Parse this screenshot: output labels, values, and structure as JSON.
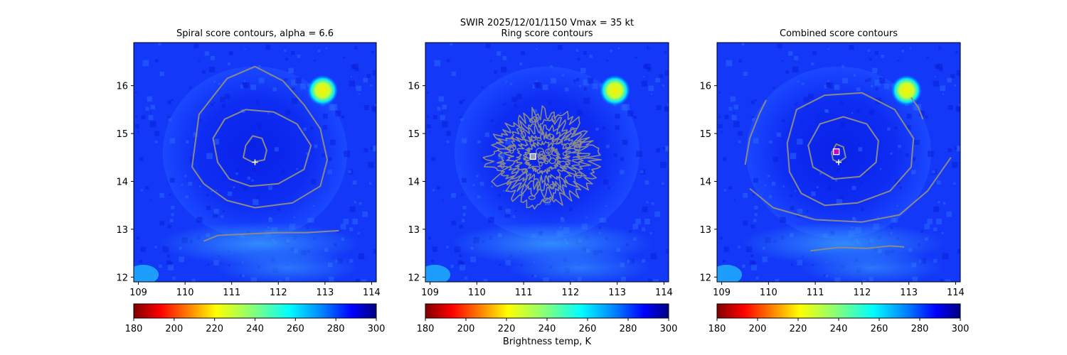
{
  "figure": {
    "suptitle_line1": "SWIR  2025/12/01/1150    Vmax = 35 kt",
    "colorbar_label": "Brightness temp, K"
  },
  "colors": {
    "contour": "#8a8a8a",
    "background_field": "#1030f0",
    "warm_spot": "#ffe000",
    "marker_white": "#ffffff",
    "marker_magenta": "#cc00cc"
  },
  "chart_data": [
    {
      "type": "heatmap",
      "panel": "spiral",
      "title": "Spiral score contours, alpha =  6.6",
      "xlim": [
        108.9,
        114.1
      ],
      "ylim": [
        11.9,
        16.9
      ],
      "xticks": [
        "109",
        "110",
        "111",
        "112",
        "113",
        "114"
      ],
      "yticks": [
        "12",
        "13",
        "14",
        "15",
        "16"
      ],
      "colormap": "jet_r",
      "colorbar": {
        "min": 180,
        "max": 300,
        "ticks": [
          "180",
          "200",
          "220",
          "240",
          "260",
          "280",
          "300"
        ]
      },
      "center_marker": {
        "symbol": "+",
        "x": 111.5,
        "y": 14.4
      },
      "warm_spot": {
        "x": 112.95,
        "y": 15.9
      },
      "contours": [
        [
          [
            111.3,
            14.75
          ],
          [
            111.45,
            14.95
          ],
          [
            111.65,
            14.9
          ],
          [
            111.75,
            14.65
          ],
          [
            111.7,
            14.45
          ],
          [
            111.45,
            14.4
          ],
          [
            111.25,
            14.5
          ]
        ],
        [
          [
            110.7,
            14.4
          ],
          [
            110.6,
            14.9
          ],
          [
            110.85,
            15.3
          ],
          [
            111.3,
            15.5
          ],
          [
            111.9,
            15.45
          ],
          [
            112.4,
            15.2
          ],
          [
            112.7,
            14.75
          ],
          [
            112.55,
            14.25
          ],
          [
            112.0,
            13.95
          ],
          [
            111.4,
            13.9
          ],
          [
            110.95,
            14.05
          ]
        ],
        [
          [
            110.15,
            14.3
          ],
          [
            110.3,
            15.4
          ],
          [
            110.9,
            16.15
          ],
          [
            111.5,
            16.4
          ],
          [
            112.1,
            16.1
          ],
          [
            112.55,
            15.6
          ],
          [
            112.9,
            15.1
          ],
          [
            113.05,
            14.45
          ],
          [
            112.9,
            13.9
          ],
          [
            112.3,
            13.55
          ],
          [
            111.5,
            13.45
          ],
          [
            110.9,
            13.6
          ],
          [
            110.4,
            13.95
          ]
        ],
        [
          [
            110.4,
            12.75
          ],
          [
            110.7,
            12.87
          ],
          [
            111.3,
            12.9
          ],
          [
            112.0,
            12.93
          ],
          [
            112.6,
            12.93
          ],
          [
            113.3,
            12.97
          ]
        ]
      ]
    },
    {
      "type": "heatmap",
      "panel": "ring",
      "title": "Ring score contours",
      "xlim": [
        108.9,
        114.1
      ],
      "ylim": [
        11.9,
        16.9
      ],
      "xticks": [
        "109",
        "110",
        "111",
        "112",
        "113",
        "114"
      ],
      "yticks": [
        "12",
        "13",
        "14",
        "15",
        "16"
      ],
      "colormap": "jet_r",
      "colorbar": {
        "min": 180,
        "max": 300,
        "ticks": [
          "180",
          "200",
          "220",
          "240",
          "260",
          "280",
          "300"
        ]
      },
      "center_marker": {
        "symbol": "square",
        "x": 111.2,
        "y": 14.52
      },
      "warm_spot": {
        "x": 112.95,
        "y": 15.9
      },
      "ring_region": {
        "cx": 111.4,
        "cy": 14.5,
        "rx": 1.1,
        "ry": 0.95
      }
    },
    {
      "type": "heatmap",
      "panel": "combined",
      "title": "Combined score contours",
      "xlim": [
        108.9,
        114.1
      ],
      "ylim": [
        11.9,
        16.9
      ],
      "xticks": [
        "109",
        "110",
        "111",
        "112",
        "113",
        "114"
      ],
      "yticks": [
        "12",
        "13",
        "14",
        "15",
        "16"
      ],
      "colormap": "jet_r",
      "colorbar": {
        "min": 180,
        "max": 300,
        "ticks": [
          "180",
          "200",
          "220",
          "240",
          "260",
          "280",
          "300"
        ]
      },
      "center_marker": {
        "symbol": "+",
        "x": 111.5,
        "y": 14.4
      },
      "best_marker": {
        "symbol": "square",
        "x": 111.45,
        "y": 14.62
      },
      "warm_spot": {
        "x": 112.95,
        "y": 15.9
      },
      "contours": [
        [
          [
            111.35,
            14.6
          ],
          [
            111.45,
            14.78
          ],
          [
            111.6,
            14.72
          ],
          [
            111.65,
            14.5
          ],
          [
            111.5,
            14.4
          ],
          [
            111.38,
            14.45
          ]
        ],
        [
          [
            110.85,
            14.75
          ],
          [
            111.1,
            15.2
          ],
          [
            111.6,
            15.35
          ],
          [
            112.1,
            15.2
          ],
          [
            112.35,
            14.85
          ],
          [
            112.3,
            14.4
          ],
          [
            111.95,
            14.1
          ],
          [
            111.4,
            14.05
          ],
          [
            110.95,
            14.3
          ]
        ],
        [
          [
            110.4,
            14.8
          ],
          [
            110.6,
            15.5
          ],
          [
            111.2,
            15.8
          ],
          [
            112.0,
            15.85
          ],
          [
            112.7,
            15.5
          ],
          [
            113.1,
            14.9
          ],
          [
            113.05,
            14.3
          ],
          [
            112.6,
            13.8
          ],
          [
            111.9,
            13.55
          ],
          [
            111.2,
            13.5
          ],
          [
            110.7,
            13.75
          ],
          [
            110.45,
            14.2
          ]
        ],
        [
          [
            109.5,
            14.35
          ],
          [
            109.6,
            14.9
          ],
          [
            109.8,
            15.4
          ],
          [
            109.95,
            15.7
          ]
        ],
        [
          [
            109.6,
            13.85
          ],
          [
            110.1,
            13.45
          ],
          [
            111.0,
            13.2
          ],
          [
            112.0,
            13.15
          ],
          [
            112.8,
            13.3
          ],
          [
            113.4,
            13.8
          ],
          [
            113.9,
            14.5
          ]
        ],
        [
          [
            113.05,
            15.75
          ],
          [
            113.2,
            15.55
          ],
          [
            113.3,
            15.3
          ]
        ],
        [
          [
            110.9,
            12.55
          ],
          [
            111.5,
            12.62
          ],
          [
            112.1,
            12.6
          ],
          [
            112.6,
            12.65
          ],
          [
            112.9,
            12.63
          ]
        ]
      ]
    }
  ]
}
